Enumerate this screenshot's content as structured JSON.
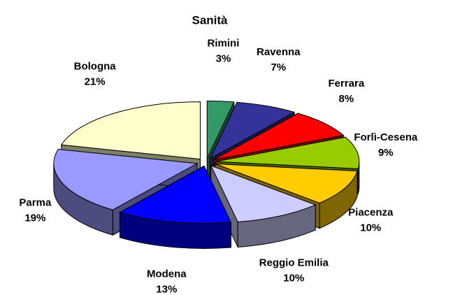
{
  "chart_data": {
    "type": "pie3d",
    "title": "Sanità",
    "categories": [
      "Rimini",
      "Ravenna",
      "Ferrara",
      "Forlì-Cesena",
      "Piacenza",
      "Reggio Emilia",
      "Modena",
      "Parma",
      "Bologna"
    ],
    "values": [
      3,
      7,
      8,
      9,
      10,
      10,
      13,
      19,
      21
    ],
    "value_labels": [
      "3%",
      "7%",
      "8%",
      "9%",
      "10%",
      "10%",
      "13%",
      "19%",
      "21%"
    ],
    "colors": [
      "#339966",
      "#333399",
      "#ff0000",
      "#99cc00",
      "#ffcc00",
      "#ccccff",
      "#0000ff",
      "#9999ff",
      "#ffffcc"
    ]
  }
}
